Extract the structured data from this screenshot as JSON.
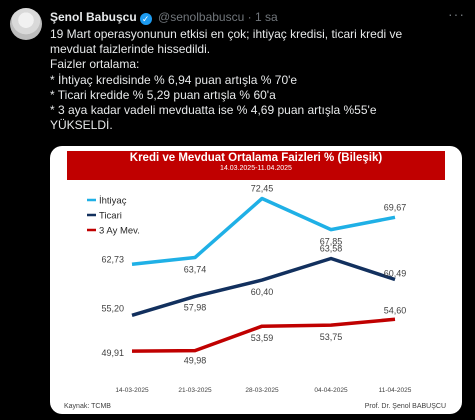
{
  "tweet": {
    "author_name": "Şenol Babuşcu",
    "handle": "@senolbabuscu",
    "separator": "·",
    "time": "1 sa",
    "lines": [
      "19 Mart operasyonunun etkisi en çok; ihtiyaç kredisi, ticari kredi ve",
      "mevduat faizlerinde hissedildi.",
      "Faizler ortalama:",
      "* İhtiyaç kredisinde % 6,94 puan artışla % 70'e",
      "* Ticari kredide % 5,29 puan artışla % 60'a",
      "* 3 aya kadar vadeli mevduatta ise % 4,69 puan artışla %55'e",
      "YÜKSELDİ."
    ],
    "icons": {
      "verified": "verified-badge-icon",
      "more": "more-options-icon"
    },
    "verified_color": "#1d9bf0"
  },
  "chart_data": {
    "type": "line",
    "title": "Kredi ve Mevduat Ortalama Faizleri % (Bileşik)",
    "subtitle": "14.03.2025-11.04.2025",
    "categories": [
      "14-03-2025",
      "21-03-2025",
      "28-03-2025",
      "04-04-2025",
      "11-04-2025"
    ],
    "series": [
      {
        "name": "İhtiyaç",
        "color": "#1fb0e6",
        "values": [
          62.73,
          63.74,
          72.45,
          67.85,
          69.67
        ],
        "labels": [
          "62,73",
          "63,74",
          "72,45",
          "67,85",
          "69,67"
        ]
      },
      {
        "name": "Ticari",
        "color": "#12305e",
        "values": [
          55.2,
          57.98,
          60.4,
          63.58,
          60.49
        ],
        "labels": [
          "55,20",
          "57,98",
          "60,40",
          "63,58",
          "60,49"
        ]
      },
      {
        "name": "3 Ay Mev.",
        "color": "#c00000",
        "values": [
          49.91,
          49.98,
          53.59,
          53.75,
          54.6
        ],
        "labels": [
          "49,91",
          "49,98",
          "53,59",
          "53,75",
          "54,60"
        ]
      }
    ],
    "legend_position": "top-left",
    "grid": false,
    "source": "Kaynak: TCMB",
    "credit": "Prof. Dr. Şenol BABUŞCU",
    "title_bg": "#c00000"
  }
}
